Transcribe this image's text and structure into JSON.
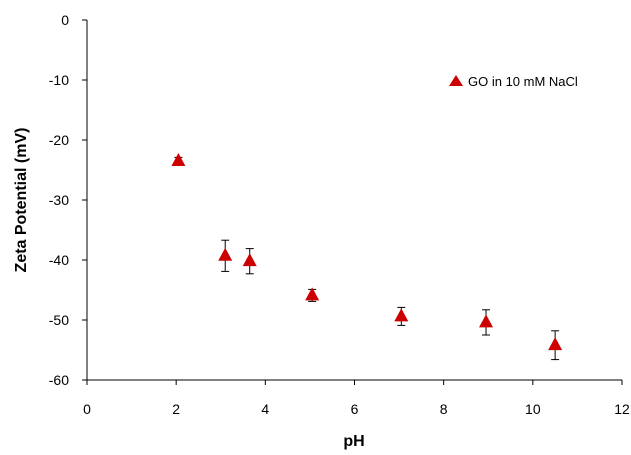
{
  "chart_data": {
    "type": "scatter",
    "title": "",
    "xlabel": "pH",
    "ylabel": "Zeta Potential (mV)",
    "xlim": [
      0,
      12
    ],
    "ylim": [
      -60,
      0
    ],
    "x_ticks": [
      0,
      2,
      4,
      6,
      8,
      10,
      12
    ],
    "x_tick_labels": [
      "0",
      "2",
      "4",
      "6",
      "8",
      "10",
      "12"
    ],
    "y_ticks": [
      0,
      -10,
      -20,
      -30,
      -40,
      -50,
      -60
    ],
    "y_tick_labels": [
      "0",
      "-10",
      "-20",
      "-30",
      "-40",
      "-50",
      "-60"
    ],
    "grid": false,
    "legend_position": "top-right",
    "series": [
      {
        "name": "GO in 10 mM NaCl",
        "marker": "triangle",
        "color": "#cc0000",
        "points": [
          {
            "x": 2.05,
            "y": -23.5,
            "err": 0.6
          },
          {
            "x": 3.1,
            "y": -39.3,
            "err": 2.6
          },
          {
            "x": 3.65,
            "y": -40.2,
            "err": 2.1
          },
          {
            "x": 5.05,
            "y": -45.9,
            "err": 1.0
          },
          {
            "x": 7.05,
            "y": -49.4,
            "err": 1.5
          },
          {
            "x": 8.95,
            "y": -50.4,
            "err": 2.1
          },
          {
            "x": 10.5,
            "y": -54.2,
            "err": 2.4
          }
        ]
      }
    ]
  }
}
